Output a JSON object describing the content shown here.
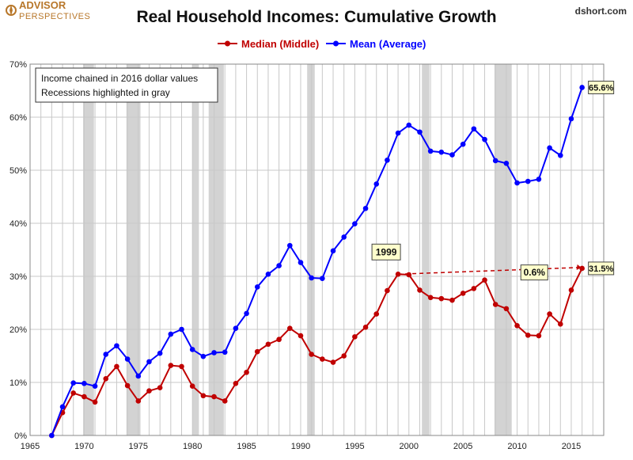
{
  "logo": {
    "line1": "ADVISOR",
    "line2": "PERSPECTIVES"
  },
  "source": "dshort.com",
  "chart_data": {
    "type": "line",
    "title": "Real Household Incomes: Cumulative Growth",
    "xlabel": "",
    "ylabel": "",
    "xlim": [
      1965,
      2018
    ],
    "ylim": [
      0,
      70
    ],
    "x_ticks": [
      "1965",
      "1970",
      "1975",
      "1980",
      "1985",
      "1990",
      "1995",
      "2000",
      "2005",
      "2010",
      "2015"
    ],
    "y_ticks": [
      "0%",
      "10%",
      "20%",
      "30%",
      "40%",
      "50%",
      "60%",
      "70%"
    ],
    "grid": true,
    "legend_position": "top-center",
    "notes": [
      "Income chained in 2016 dollar values",
      "Recessions highlighted in gray"
    ],
    "recessions": [
      [
        1969.9,
        1970.9
      ],
      [
        1973.9,
        1975.2
      ],
      [
        1980.0,
        1980.6
      ],
      [
        1981.5,
        1982.9
      ],
      [
        1990.6,
        1991.3
      ],
      [
        2001.2,
        2001.9
      ],
      [
        2007.9,
        2009.5
      ]
    ],
    "x": [
      1967,
      1968,
      1969,
      1970,
      1971,
      1972,
      1973,
      1974,
      1975,
      1976,
      1977,
      1978,
      1979,
      1980,
      1981,
      1982,
      1983,
      1984,
      1985,
      1986,
      1987,
      1988,
      1989,
      1990,
      1991,
      1992,
      1993,
      1994,
      1995,
      1996,
      1997,
      1998,
      1999,
      2000,
      2001,
      2002,
      2003,
      2004,
      2005,
      2006,
      2007,
      2008,
      2009,
      2010,
      2011,
      2012,
      2013,
      2014,
      2015,
      2016
    ],
    "series": [
      {
        "name": "Median (Middle)",
        "color": "#c00000",
        "values": [
          0,
          4.3,
          8.0,
          7.3,
          6.3,
          10.7,
          13.0,
          9.4,
          6.5,
          8.4,
          9.0,
          13.2,
          13.0,
          9.3,
          7.5,
          7.3,
          6.5,
          9.8,
          11.9,
          15.8,
          17.2,
          18.1,
          20.2,
          18.8,
          15.3,
          14.4,
          13.8,
          15.0,
          18.6,
          20.4,
          22.9,
          27.3,
          30.4,
          30.3,
          27.4,
          26.0,
          25.8,
          25.5,
          26.8,
          27.7,
          29.3,
          24.7,
          23.9,
          20.7,
          18.9,
          18.8,
          22.9,
          21.0,
          27.4,
          31.5
        ]
      },
      {
        "name": "Mean (Average)",
        "color": "#0000ff",
        "values": [
          0,
          5.4,
          9.9,
          9.8,
          9.3,
          15.3,
          16.9,
          14.4,
          11.2,
          13.9,
          15.5,
          19.1,
          20.0,
          16.2,
          14.9,
          15.6,
          15.7,
          20.2,
          23.0,
          28.0,
          30.4,
          32.0,
          35.8,
          32.6,
          29.7,
          29.6,
          34.8,
          37.4,
          39.9,
          42.8,
          47.4,
          51.9,
          57.0,
          58.5,
          57.2,
          53.6,
          53.4,
          52.9,
          54.9,
          57.8,
          55.8,
          51.8,
          51.3,
          47.6,
          47.9,
          48.3,
          54.2,
          52.8,
          59.7,
          65.6
        ]
      }
    ],
    "annotations": [
      {
        "text": "65.6%",
        "x": 2016,
        "y": 65.6
      },
      {
        "text": "31.5%",
        "x": 2016,
        "y": 31.5
      },
      {
        "text": "1999",
        "x": 1999,
        "y": 30.4
      },
      {
        "text": "0.6%",
        "x": 2011,
        "y": 30.8
      }
    ]
  }
}
